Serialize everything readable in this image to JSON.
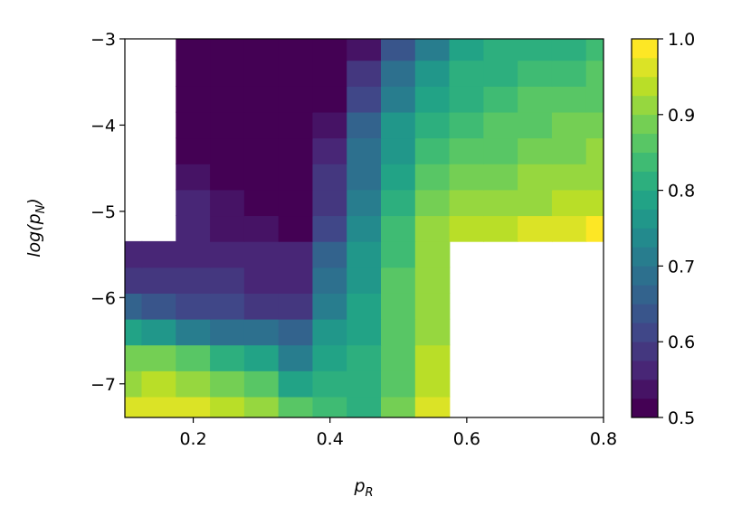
{
  "chart_data": {
    "type": "contour",
    "colormap": "viridis",
    "levels": 20,
    "xlabel": [
      "p",
      "R"
    ],
    "ylabel": [
      "log(p",
      "N",
      ")"
    ],
    "xlim": [
      0.1,
      0.8
    ],
    "ylim": [
      -7.39,
      -3
    ],
    "xticks": [
      0.2,
      0.4,
      0.6,
      0.8
    ],
    "yticks": [
      {
        "value": -7,
        "label": "−7"
      },
      {
        "value": -6,
        "label": "−6"
      },
      {
        "value": -5,
        "label": "−5"
      },
      {
        "value": -4,
        "label": "−4"
      },
      {
        "value": -3,
        "label": "−3"
      }
    ],
    "zlim": [
      0.5,
      1.0
    ],
    "zticks": [
      0.5,
      0.6,
      0.7,
      0.8,
      0.9,
      {
        "value": 1.0,
        "label": "1.0"
      }
    ],
    "x": [
      0.1,
      0.15,
      0.2,
      0.25,
      0.3,
      0.35,
      0.4,
      0.45,
      0.5,
      0.55,
      0.6,
      0.65,
      0.7,
      0.75,
      0.8
    ],
    "y": [
      -7.3,
      -7.0,
      -6.7,
      -6.4,
      -6.1,
      -5.8,
      -5.5,
      -5.2,
      -4.9,
      -4.6,
      -4.3,
      -4.0,
      -3.7,
      -3.4,
      -3.1
    ],
    "z": [
      [
        0.95,
        0.97,
        0.96,
        0.93,
        0.9,
        0.86,
        0.83,
        0.82,
        0.88,
        0.95,
        null,
        null,
        null,
        null,
        null
      ],
      [
        0.92,
        0.93,
        0.91,
        0.88,
        0.85,
        0.78,
        0.82,
        0.8,
        0.86,
        0.94,
        null,
        null,
        null,
        null,
        null
      ],
      [
        0.88,
        0.88,
        0.86,
        0.82,
        0.78,
        0.72,
        0.78,
        0.8,
        0.85,
        0.93,
        null,
        null,
        null,
        null,
        null
      ],
      [
        0.78,
        0.75,
        0.72,
        0.7,
        0.68,
        0.65,
        0.75,
        0.79,
        0.85,
        0.92,
        null,
        null,
        null,
        null,
        null
      ],
      [
        0.66,
        0.64,
        0.62,
        0.61,
        0.6,
        0.6,
        0.72,
        0.78,
        0.85,
        0.91,
        null,
        null,
        null,
        null,
        null
      ],
      [
        0.6,
        0.59,
        0.58,
        0.58,
        0.57,
        0.56,
        0.68,
        0.77,
        0.85,
        0.9,
        null,
        null,
        null,
        null,
        null
      ],
      [
        0.57,
        0.56,
        0.56,
        0.56,
        0.55,
        0.55,
        0.65,
        0.75,
        0.84,
        0.9,
        null,
        null,
        null,
        null,
        null
      ],
      [
        null,
        null,
        0.55,
        0.54,
        0.53,
        0.52,
        0.62,
        0.74,
        0.83,
        0.9,
        0.93,
        0.94,
        0.96,
        0.97,
        0.98
      ],
      [
        null,
        null,
        0.55,
        0.54,
        0.52,
        0.51,
        0.6,
        0.72,
        0.81,
        0.88,
        0.9,
        0.91,
        0.92,
        0.93,
        0.94
      ],
      [
        null,
        null,
        0.54,
        0.52,
        0.5,
        0.5,
        0.58,
        0.7,
        0.79,
        0.86,
        0.88,
        0.89,
        0.9,
        0.91,
        0.92
      ],
      [
        null,
        null,
        0.51,
        0.5,
        0.5,
        0.5,
        0.56,
        0.68,
        0.77,
        0.84,
        0.86,
        0.87,
        0.88,
        0.89,
        0.9
      ],
      [
        null,
        null,
        0.5,
        0.5,
        0.5,
        0.5,
        0.54,
        0.66,
        0.75,
        0.82,
        0.84,
        0.86,
        0.87,
        0.88,
        0.88
      ],
      [
        null,
        null,
        0.5,
        0.5,
        0.5,
        0.5,
        0.52,
        0.62,
        0.72,
        0.79,
        0.82,
        0.84,
        0.85,
        0.86,
        0.87
      ],
      [
        null,
        null,
        0.5,
        0.5,
        0.5,
        0.5,
        0.5,
        0.58,
        0.68,
        0.76,
        0.8,
        0.82,
        0.83,
        0.84,
        0.85
      ],
      [
        null,
        null,
        0.5,
        0.5,
        0.5,
        0.5,
        0.5,
        0.53,
        0.63,
        0.72,
        0.78,
        0.8,
        0.81,
        0.82,
        0.83
      ]
    ]
  }
}
